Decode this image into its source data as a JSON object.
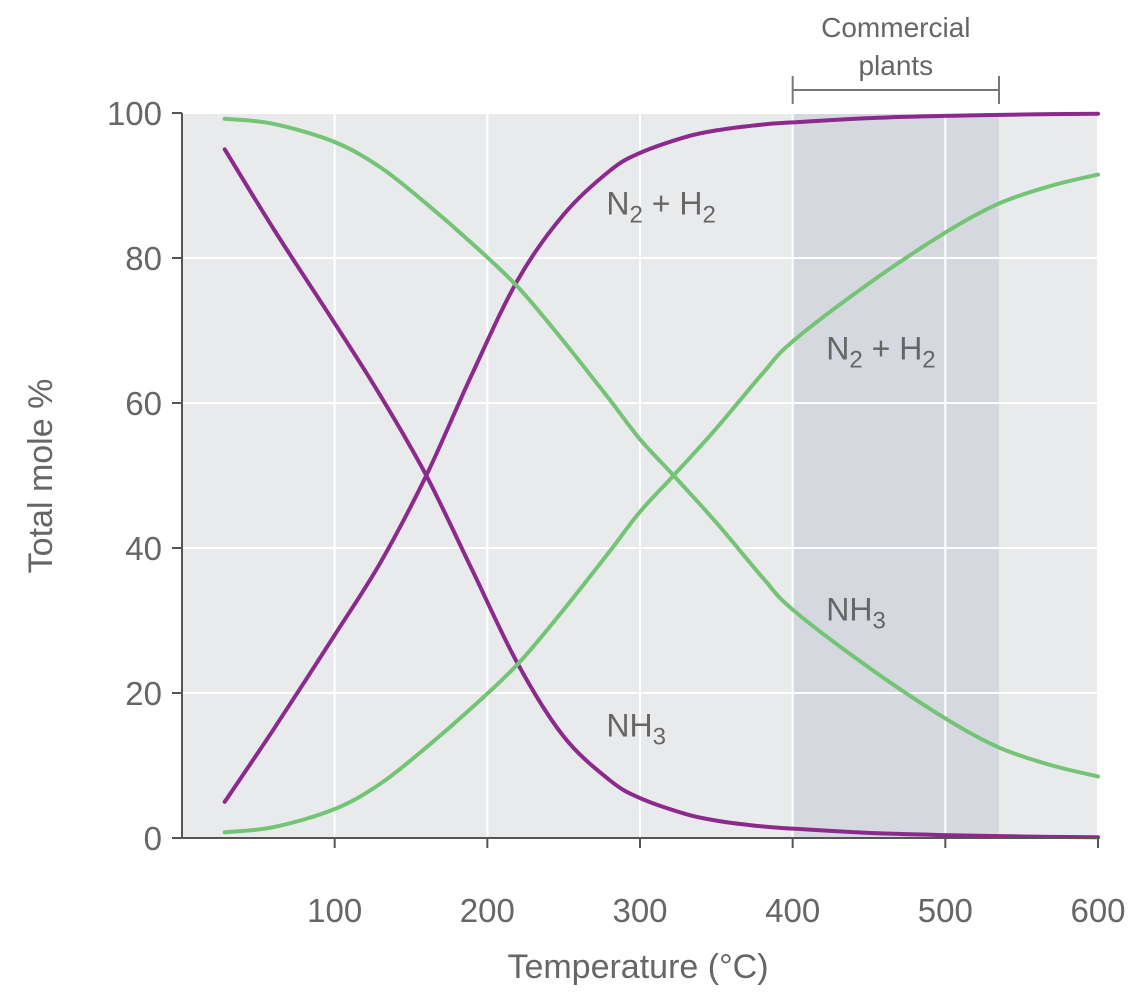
{
  "chart_data": {
    "type": "line",
    "xlabel": "Temperature (°C)",
    "ylabel": "Total mole %",
    "xlim": [
      0,
      600
    ],
    "ylim": [
      0,
      100
    ],
    "x_ticks": [
      "100",
      "200",
      "300",
      "400",
      "500",
      "600"
    ],
    "y_ticks": [
      "0",
      "20",
      "40",
      "60",
      "80",
      "100"
    ],
    "grid": true,
    "shaded_region": {
      "x_start": 400,
      "x_end": 535,
      "label_line1": "Commercial",
      "label_line2": "plants"
    },
    "colors": {
      "purple": "#8B2A8C",
      "green": "#74C476",
      "plot_bg": "#E9EAEC",
      "shade": "#D5D8DF",
      "grid": "#FFFFFF",
      "axis": "#555555"
    },
    "series": [
      {
        "name": "N2 + H2 (purple)",
        "color": "#8B2A8C",
        "x": [
          28,
          60,
          100,
          130,
          160,
          190,
          220,
          250,
          280,
          300,
          330,
          350,
          380,
          400,
          450,
          500,
          550,
          600
        ],
        "y": [
          5,
          15,
          28,
          38,
          50,
          64,
          77,
          86,
          92,
          94.5,
          96.7,
          97.6,
          98.4,
          98.7,
          99.3,
          99.6,
          99.8,
          99.9
        ]
      },
      {
        "name": "NH3 (purple)",
        "color": "#8B2A8C",
        "x": [
          28,
          60,
          100,
          130,
          160,
          190,
          220,
          250,
          280,
          300,
          330,
          350,
          380,
          400,
          450,
          500,
          550,
          600
        ],
        "y": [
          95,
          84,
          71,
          61,
          50,
          37,
          24,
          14,
          8,
          5.5,
          3.3,
          2.4,
          1.6,
          1.3,
          0.7,
          0.4,
          0.2,
          0.1
        ]
      },
      {
        "name": "NH3 (green)",
        "color": "#74C476",
        "x": [
          28,
          60,
          100,
          130,
          160,
          190,
          220,
          250,
          280,
          300,
          322,
          350,
          380,
          400,
          450,
          500,
          535,
          570,
          600
        ],
        "y": [
          99.2,
          98.5,
          96,
          92.5,
          87.5,
          82,
          76,
          68.5,
          60.5,
          55,
          50,
          43.5,
          36,
          31.5,
          23.5,
          16.5,
          12.5,
          10,
          8.5
        ]
      },
      {
        "name": "N2 + H2 (green)",
        "color": "#74C476",
        "x": [
          28,
          60,
          100,
          130,
          160,
          190,
          220,
          250,
          280,
          300,
          322,
          350,
          380,
          400,
          450,
          500,
          535,
          570,
          600
        ],
        "y": [
          0.8,
          1.5,
          4,
          7.5,
          12.5,
          18,
          24,
          31.5,
          39.5,
          45,
          50,
          56.5,
          64,
          68.5,
          76.5,
          83.5,
          87.5,
          90,
          91.5
        ]
      }
    ],
    "annotations": [
      {
        "id": "purple_n2h2",
        "text_main": "N",
        "sub1": "2",
        "mid": " + H",
        "sub2": "2",
        "x": 278,
        "y": 86
      },
      {
        "id": "green_n2h2",
        "text_main": "N",
        "sub1": "2",
        "mid": " + H",
        "sub2": "2",
        "x": 422,
        "y": 66
      },
      {
        "id": "green_nh3",
        "text_main": "NH",
        "sub1": "3",
        "x": 422,
        "y": 30
      },
      {
        "id": "purple_nh3",
        "text_main": "NH",
        "sub1": "3",
        "x": 278,
        "y": 14
      }
    ]
  }
}
